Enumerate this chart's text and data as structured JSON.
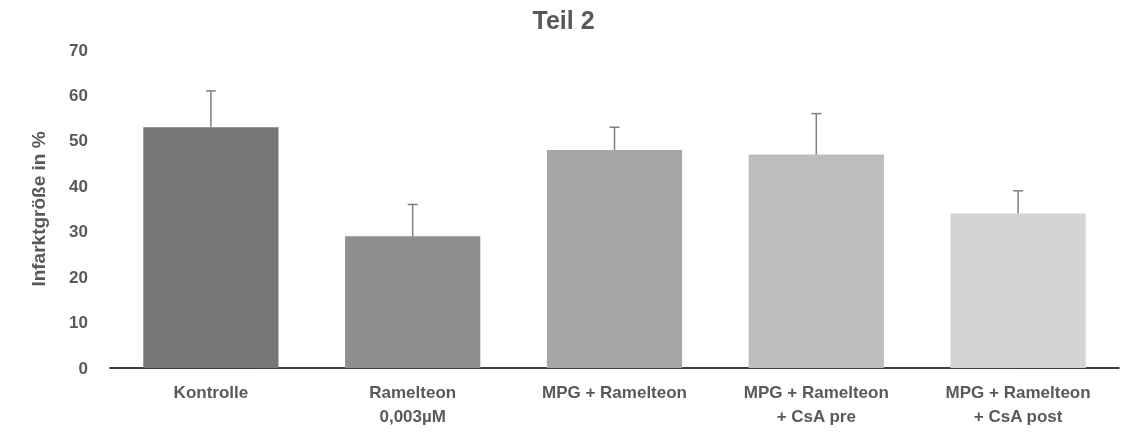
{
  "chart_data": {
    "type": "bar",
    "title": "Teil 2",
    "ylabel": "Infarktgröße in %",
    "categories": [
      "Kontrolle",
      "Ramelteon\n0,003µM",
      "MPG + Ramelteon",
      "MPG + Ramelteon\n+ CsA pre",
      "MPG + Ramelteon\n+ CsA post"
    ],
    "values": [
      53,
      29,
      48,
      47,
      34
    ],
    "colors": [
      "#767676",
      "#8f8f8f",
      "#a6a6a6",
      "#bdbdbd",
      "#d4d4d4"
    ],
    "errors": [
      [
        53,
        61
      ],
      [
        29,
        36
      ],
      [
        48,
        53
      ],
      [
        47,
        56
      ],
      [
        34,
        39
      ]
    ],
    "ylim": [
      0,
      70
    ],
    "yticks": [
      0,
      10,
      20,
      30,
      40,
      50,
      60,
      70
    ],
    "grid": false
  }
}
